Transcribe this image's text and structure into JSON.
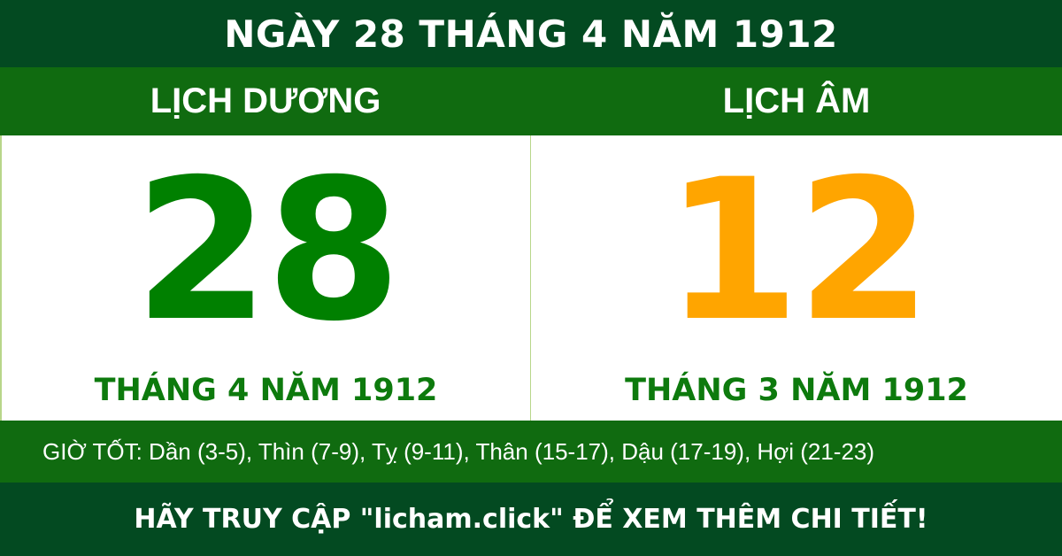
{
  "header": {
    "title": "NGÀY 28 THÁNG 4 NĂM 1912"
  },
  "solar": {
    "label": "LỊCH DƯƠNG",
    "day": "28",
    "month_year": "THÁNG 4 NĂM 1912",
    "color": "#008000"
  },
  "lunar": {
    "label": "LỊCH ÂM",
    "day": "12",
    "month_year": "THÁNG 3 NĂM 1912",
    "color": "#ffa500"
  },
  "good_hours": "GIỜ TỐT: Dần (3-5), Thìn (7-9), Tỵ (9-11), Thân (15-17), Dậu (17-19), Hợi (21-23)",
  "footer": {
    "text": "HÃY TRUY CẬP \"licham.click\" ĐỂ XEM THÊM CHI TIẾT!"
  },
  "colors": {
    "dark_green": "#034a21",
    "band_green": "#106b10"
  }
}
